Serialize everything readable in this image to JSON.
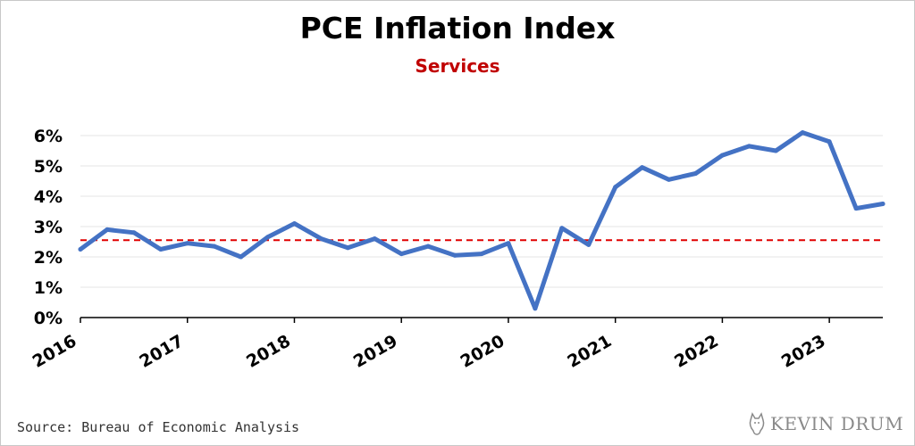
{
  "chart_data": {
    "type": "line",
    "title": "PCE Inflation Index",
    "subtitle": "Services",
    "ylim": [
      0,
      6.5
    ],
    "y_ticks": [
      "0%",
      "1%",
      "2%",
      "3%",
      "4%",
      "5%",
      "6%"
    ],
    "x_ticks": [
      "2016",
      "2017",
      "2018",
      "2019",
      "2020",
      "2021",
      "2022",
      "2023"
    ],
    "xlim": [
      2016.0,
      2023.5
    ],
    "grid": true,
    "series": [
      {
        "color": "#4472c4",
        "x": [
          2016.0,
          2016.25,
          2016.5,
          2016.75,
          2017.0,
          2017.25,
          2017.5,
          2017.75,
          2018.0,
          2018.25,
          2018.5,
          2018.75,
          2019.0,
          2019.25,
          2019.5,
          2019.75,
          2020.0,
          2020.25,
          2020.5,
          2020.75,
          2021.0,
          2021.25,
          2021.5,
          2021.75,
          2022.0,
          2022.25,
          2022.5,
          2022.75,
          2023.0,
          2023.25,
          2023.5
        ],
        "values": [
          2.25,
          2.9,
          2.8,
          2.25,
          2.45,
          2.35,
          2.0,
          2.65,
          3.1,
          2.6,
          2.3,
          2.6,
          2.1,
          2.35,
          2.05,
          2.1,
          2.45,
          0.3,
          2.95,
          2.4,
          4.3,
          4.95,
          4.55,
          4.75,
          5.35,
          5.65,
          5.5,
          6.1,
          5.8,
          3.6,
          3.75
        ]
      }
    ],
    "reference_line": {
      "value": 2.55,
      "style": "dashed",
      "color": "#e00000"
    }
  },
  "source": "Source: Bureau of Economic Analysis",
  "logo": {
    "text": "KEVIN DRUM",
    "icon": "cat-icon"
  },
  "colors": {
    "line": "#4472c4",
    "reference": "#e00000",
    "subtitle": "#c00000"
  }
}
